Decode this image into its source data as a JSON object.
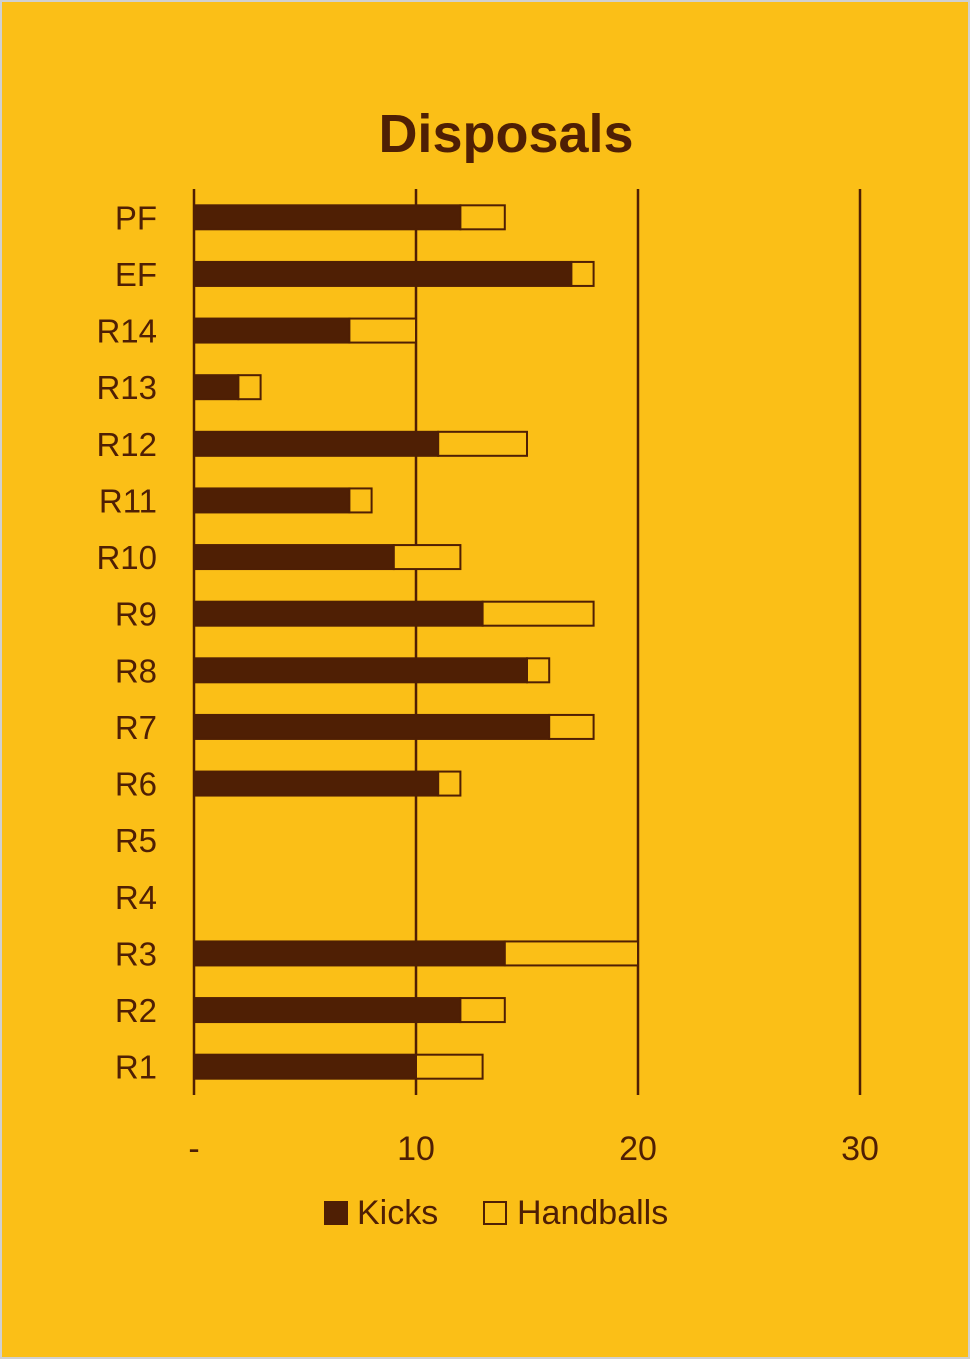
{
  "chart_data": {
    "type": "bar",
    "orientation": "horizontal",
    "stacked": true,
    "title": "Disposals",
    "categories": [
      "PF",
      "EF",
      "R14",
      "R13",
      "R12",
      "R11",
      "R10",
      "R9",
      "R8",
      "R7",
      "R6",
      "R5",
      "R4",
      "R3",
      "R2",
      "R1"
    ],
    "series": [
      {
        "name": "Kicks",
        "values": [
          12,
          17,
          7,
          2,
          11,
          7,
          9,
          13,
          15,
          16,
          11,
          null,
          null,
          14,
          12,
          10
        ],
        "fill": "#4F1F04"
      },
      {
        "name": "Handballs",
        "values": [
          2,
          1,
          3,
          1,
          4,
          1,
          3,
          5,
          1,
          2,
          1,
          null,
          null,
          6,
          2,
          3
        ],
        "fill": "#FBBF17"
      }
    ],
    "xlim": [
      0,
      30
    ],
    "xticks": [
      0,
      10,
      20,
      30
    ],
    "xtick_labels": [
      "-",
      "10",
      "20",
      "30"
    ],
    "grid": "vertical",
    "legend": "bottom",
    "colors": {
      "background": "#FBBF17",
      "ink": "#4F1F04"
    }
  }
}
